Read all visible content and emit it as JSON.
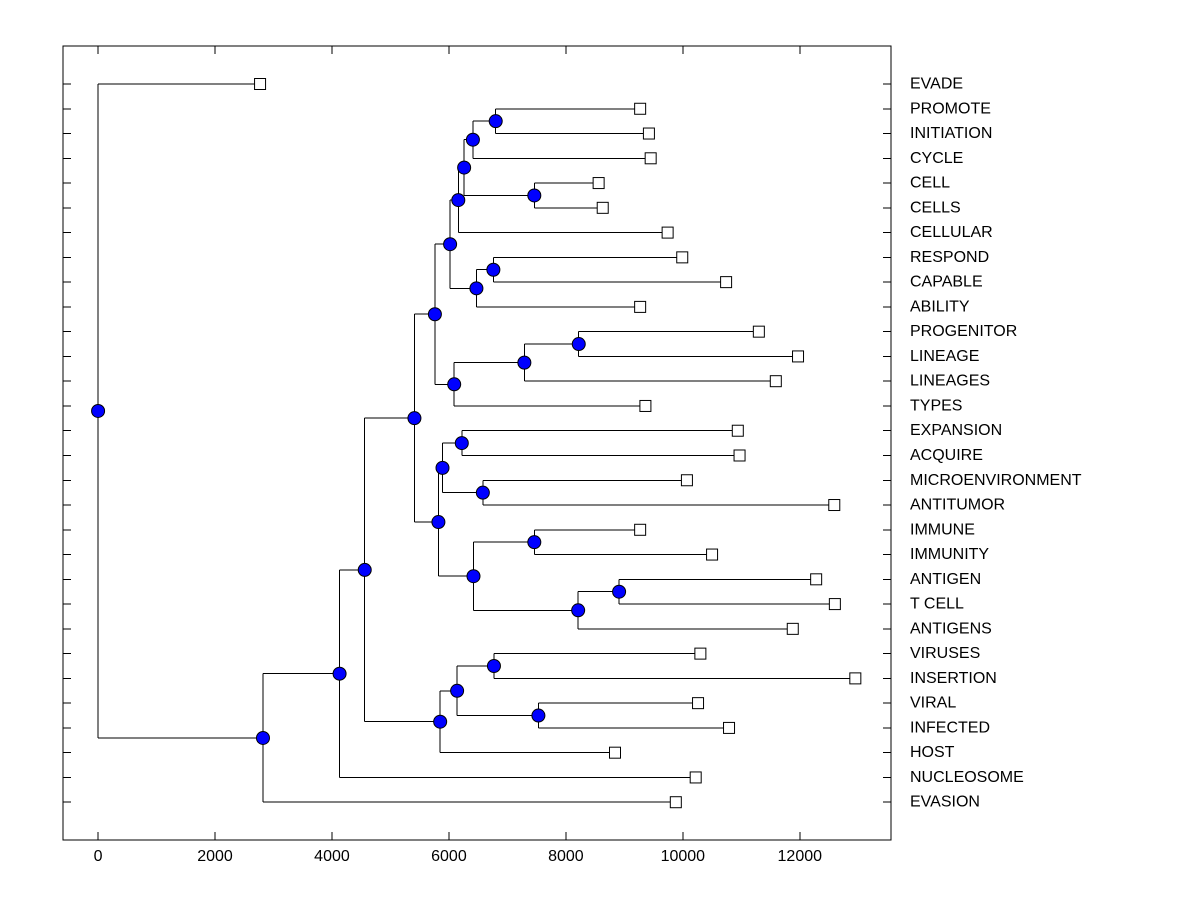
{
  "figure": {
    "background": "#ffffff",
    "frame_color": "#000000",
    "branch_color": "#000000",
    "text_color": "#000000",
    "internal_node_marker": {
      "shape": "circle",
      "fill": "#0000ff",
      "stroke": "#000000"
    },
    "leaf_marker": {
      "shape": "square",
      "fill": "#ffffff",
      "stroke": "#000000"
    }
  },
  "chart_data": {
    "type": "dendrogram",
    "orientation": "horizontal-root-left-leaves-right",
    "title": "",
    "xlabel": "",
    "ylabel": "",
    "grid": false,
    "legend": false,
    "x_ticks": [
      0,
      2000,
      4000,
      6000,
      8000,
      10000,
      12000
    ],
    "x_tick_labels": [
      "0",
      "2000",
      "4000",
      "6000",
      "8000",
      "10000",
      "12000"
    ],
    "xlim": [
      -600,
      13560
    ],
    "leaves": [
      {
        "label": "EVADE",
        "x": 2770
      },
      {
        "label": "PROMOTE",
        "x": 9270
      },
      {
        "label": "INITIATION",
        "x": 9420
      },
      {
        "label": "CYCLE",
        "x": 9450
      },
      {
        "label": "CELL",
        "x": 8560
      },
      {
        "label": "CELLS",
        "x": 8630
      },
      {
        "label": "CELLULAR",
        "x": 9740
      },
      {
        "label": "RESPOND",
        "x": 9990
      },
      {
        "label": "CAPABLE",
        "x": 10740
      },
      {
        "label": "ABILITY",
        "x": 9270
      },
      {
        "label": "PROGENITOR",
        "x": 11300
      },
      {
        "label": "LINEAGE",
        "x": 11970
      },
      {
        "label": "LINEAGES",
        "x": 11590
      },
      {
        "label": "TYPES",
        "x": 9360
      },
      {
        "label": "EXPANSION",
        "x": 10940
      },
      {
        "label": "ACQUIRE",
        "x": 10970
      },
      {
        "label": "MICROENVIRONMENT",
        "x": 10070
      },
      {
        "label": "ANTITUMOR",
        "x": 12590
      },
      {
        "label": "IMMUNE",
        "x": 9270
      },
      {
        "label": "IMMUNITY",
        "x": 10500
      },
      {
        "label": "ANTIGEN",
        "x": 12280
      },
      {
        "label": "T CELL",
        "x": 12600
      },
      {
        "label": "ANTIGENS",
        "x": 11880
      },
      {
        "label": "VIRUSES",
        "x": 10300
      },
      {
        "label": "INSERTION",
        "x": 12950
      },
      {
        "label": "VIRAL",
        "x": 10260
      },
      {
        "label": "INFECTED",
        "x": 10790
      },
      {
        "label": "HOST",
        "x": 8840
      },
      {
        "label": "NUCLEOSOME",
        "x": 10220
      },
      {
        "label": "EVASION",
        "x": 9880
      }
    ],
    "tree": {
      "x": 0,
      "children": [
        {
          "leaf": "EVADE"
        },
        {
          "x": 2820,
          "children": [
            {
              "x": 4130,
              "children": [
                {
                  "x": 4560,
                  "children": [
                    {
                      "x": 5410,
                      "children": [
                        {
                          "x": 5760,
                          "children": [
                            {
                              "x": 6020,
                              "children": [
                                {
                                  "x": 6160,
                                  "children": [
                                    {
                                      "x": 6260,
                                      "children": [
                                        {
                                          "x": 6410,
                                          "children": [
                                            {
                                              "x": 6800,
                                              "children": [
                                                {
                                                  "leaf": "PROMOTE"
                                                },
                                                {
                                                  "leaf": "INITIATION"
                                                }
                                              ]
                                            },
                                            {
                                              "leaf": "CYCLE"
                                            }
                                          ]
                                        },
                                        {
                                          "x": 7460,
                                          "children": [
                                            {
                                              "leaf": "CELL"
                                            },
                                            {
                                              "leaf": "CELLS"
                                            }
                                          ]
                                        }
                                      ]
                                    },
                                    {
                                      "leaf": "CELLULAR"
                                    }
                                  ]
                                },
                                {
                                  "x": 6470,
                                  "children": [
                                    {
                                      "x": 6760,
                                      "children": [
                                        {
                                          "leaf": "RESPOND"
                                        },
                                        {
                                          "leaf": "CAPABLE"
                                        }
                                      ]
                                    },
                                    {
                                      "leaf": "ABILITY"
                                    }
                                  ]
                                }
                              ]
                            },
                            {
                              "x": 6090,
                              "children": [
                                {
                                  "x": 7290,
                                  "children": [
                                    {
                                      "x": 8220,
                                      "children": [
                                        {
                                          "leaf": "PROGENITOR"
                                        },
                                        {
                                          "leaf": "LINEAGE"
                                        }
                                      ]
                                    },
                                    {
                                      "leaf": "LINEAGES"
                                    }
                                  ]
                                },
                                {
                                  "leaf": "TYPES"
                                }
                              ]
                            }
                          ]
                        },
                        {
                          "x": 5820,
                          "children": [
                            {
                              "x": 5890,
                              "children": [
                                {
                                  "x": 6220,
                                  "children": [
                                    {
                                      "leaf": "EXPANSION"
                                    },
                                    {
                                      "leaf": "ACQUIRE"
                                    }
                                  ]
                                },
                                {
                                  "x": 6580,
                                  "children": [
                                    {
                                      "leaf": "MICROENVIRONMENT"
                                    },
                                    {
                                      "leaf": "ANTITUMOR"
                                    }
                                  ]
                                }
                              ]
                            },
                            {
                              "x": 6420,
                              "children": [
                                {
                                  "x": 7460,
                                  "children": [
                                    {
                                      "leaf": "IMMUNE"
                                    },
                                    {
                                      "leaf": "IMMUNITY"
                                    }
                                  ]
                                },
                                {
                                  "x": 8210,
                                  "children": [
                                    {
                                      "x": 8910,
                                      "children": [
                                        {
                                          "leaf": "ANTIGEN"
                                        },
                                        {
                                          "leaf": "T CELL"
                                        }
                                      ]
                                    },
                                    {
                                      "leaf": "ANTIGENS"
                                    }
                                  ]
                                }
                              ]
                            }
                          ]
                        }
                      ]
                    },
                    {
                      "x": 5850,
                      "children": [
                        {
                          "x": 6140,
                          "children": [
                            {
                              "x": 6770,
                              "children": [
                                {
                                  "leaf": "VIRUSES"
                                },
                                {
                                  "leaf": "INSERTION"
                                }
                              ]
                            },
                            {
                              "x": 7530,
                              "children": [
                                {
                                  "leaf": "VIRAL"
                                },
                                {
                                  "leaf": "INFECTED"
                                }
                              ]
                            }
                          ]
                        },
                        {
                          "leaf": "HOST"
                        }
                      ]
                    }
                  ]
                },
                {
                  "leaf": "NUCLEOSOME"
                }
              ]
            },
            {
              "leaf": "EVASION"
            }
          ]
        }
      ]
    }
  }
}
